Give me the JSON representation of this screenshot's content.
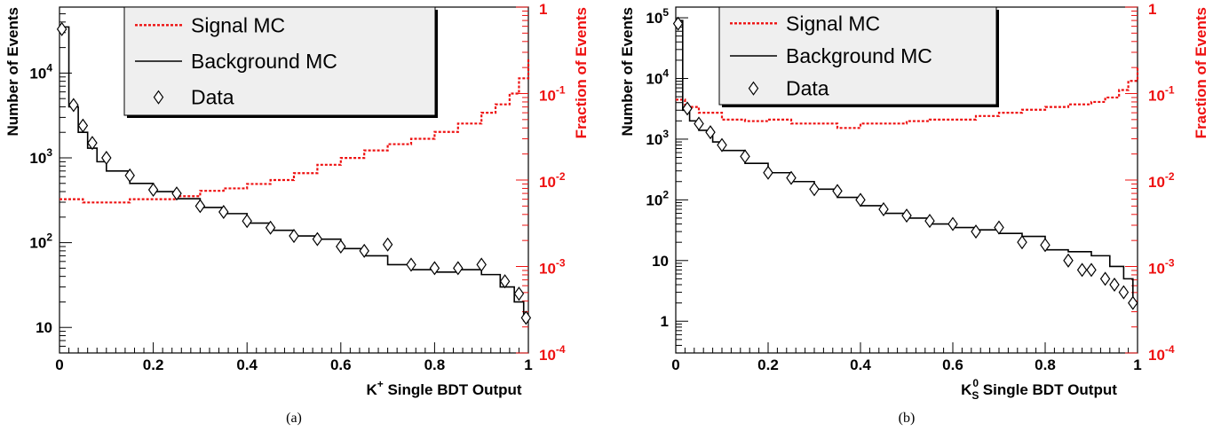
{
  "colors": {
    "signal": "#ee1111",
    "background": "#000000",
    "legend_fill": "#efefef"
  },
  "chart_data": [
    {
      "type": "line",
      "panel_caption": "(a)",
      "xlabel_main": "K",
      "xlabel_sup": "+",
      "xlabel_rest": " Single BDT Output",
      "ylabel_left": "Number of Events",
      "ylabel_right": "Fraction of Events",
      "xlim": [
        0,
        1
      ],
      "ylim_left": [
        5,
        60000
      ],
      "ylim_right": [
        0.0001,
        1
      ],
      "yscale": "log",
      "x_ticks": [
        "0",
        "0.2",
        "0.4",
        "0.6",
        "0.8",
        "1"
      ],
      "y_left_ticks": [
        {
          "value": 10,
          "base": "10",
          "exp": ""
        },
        {
          "value": 100,
          "base": "10",
          "exp": "2"
        },
        {
          "value": 1000,
          "base": "10",
          "exp": "3"
        },
        {
          "value": 10000,
          "base": "10",
          "exp": "4"
        }
      ],
      "y_right_ticks": [
        {
          "value": 0.0001,
          "base": "10",
          "exp": "-4"
        },
        {
          "value": 0.001,
          "base": "10",
          "exp": "-3"
        },
        {
          "value": 0.01,
          "base": "10",
          "exp": "-2"
        },
        {
          "value": 0.1,
          "base": "10",
          "exp": "-1"
        },
        {
          "value": 1,
          "base": "1",
          "exp": ""
        }
      ],
      "legend": {
        "placement": "top-center",
        "entries": [
          "Signal MC",
          "Background MC",
          "Data"
        ]
      },
      "series": [
        {
          "name": "Signal MC",
          "axis": "right",
          "style": "dotted-step",
          "x": [
            0,
            0.05,
            0.1,
            0.15,
            0.2,
            0.25,
            0.3,
            0.35,
            0.4,
            0.45,
            0.5,
            0.55,
            0.6,
            0.65,
            0.7,
            0.75,
            0.8,
            0.85,
            0.9,
            0.93,
            0.96,
            0.98,
            1.0
          ],
          "values": [
            0.006,
            0.0055,
            0.0055,
            0.006,
            0.006,
            0.0065,
            0.0075,
            0.008,
            0.009,
            0.01,
            0.012,
            0.015,
            0.018,
            0.022,
            0.026,
            0.03,
            0.036,
            0.045,
            0.06,
            0.075,
            0.1,
            0.15,
            0.25
          ]
        },
        {
          "name": "Background MC",
          "axis": "left",
          "style": "step",
          "x": [
            0,
            0.02,
            0.04,
            0.06,
            0.08,
            0.1,
            0.15,
            0.2,
            0.25,
            0.3,
            0.35,
            0.4,
            0.45,
            0.5,
            0.55,
            0.6,
            0.65,
            0.7,
            0.75,
            0.8,
            0.85,
            0.9,
            0.94,
            0.97,
            0.99
          ],
          "values": [
            35000,
            4000,
            2000,
            1300,
            900,
            700,
            500,
            400,
            330,
            260,
            220,
            170,
            140,
            120,
            110,
            85,
            70,
            55,
            48,
            45,
            48,
            42,
            30,
            20,
            12
          ]
        },
        {
          "name": "Data",
          "axis": "left",
          "style": "markers",
          "x": [
            0.005,
            0.03,
            0.05,
            0.07,
            0.1,
            0.15,
            0.2,
            0.25,
            0.3,
            0.35,
            0.4,
            0.45,
            0.5,
            0.55,
            0.6,
            0.65,
            0.7,
            0.75,
            0.8,
            0.85,
            0.9,
            0.95,
            0.98,
            0.995
          ],
          "values": [
            33000,
            4200,
            2400,
            1500,
            1000,
            620,
            420,
            380,
            270,
            230,
            180,
            150,
            120,
            110,
            90,
            80,
            95,
            55,
            50,
            50,
            55,
            35,
            25,
            13
          ]
        }
      ]
    },
    {
      "type": "line",
      "panel_caption": "(b)",
      "xlabel_main": "K",
      "xlabel_sup": "0",
      "xlabel_sub": "S",
      "xlabel_rest": " Single BDT Output",
      "ylabel_left": "Number of Events",
      "ylabel_right": "Fraction of Events",
      "xlim": [
        0,
        1
      ],
      "ylim_left": [
        0.3,
        150000
      ],
      "ylim_right": [
        0.0001,
        1
      ],
      "yscale": "log",
      "x_ticks": [
        "0",
        "0.2",
        "0.4",
        "0.6",
        "0.8",
        "1"
      ],
      "y_left_ticks": [
        {
          "value": 1,
          "base": "1",
          "exp": ""
        },
        {
          "value": 10,
          "base": "10",
          "exp": ""
        },
        {
          "value": 100,
          "base": "10",
          "exp": "2"
        },
        {
          "value": 1000,
          "base": "10",
          "exp": "3"
        },
        {
          "value": 10000,
          "base": "10",
          "exp": "4"
        },
        {
          "value": 100000,
          "base": "10",
          "exp": "5"
        }
      ],
      "y_right_ticks": [
        {
          "value": 0.0001,
          "base": "10",
          "exp": "-4"
        },
        {
          "value": 0.001,
          "base": "10",
          "exp": "-3"
        },
        {
          "value": 0.01,
          "base": "10",
          "exp": "-2"
        },
        {
          "value": 0.1,
          "base": "10",
          "exp": "-1"
        },
        {
          "value": 1,
          "base": "1",
          "exp": ""
        }
      ],
      "legend": {
        "placement": "top-center",
        "entries": [
          "Signal MC",
          "Background MC",
          "Data"
        ]
      },
      "series": [
        {
          "name": "Signal MC",
          "axis": "right",
          "style": "dotted-step",
          "x": [
            0,
            0.02,
            0.05,
            0.1,
            0.15,
            0.2,
            0.25,
            0.3,
            0.35,
            0.4,
            0.45,
            0.5,
            0.55,
            0.6,
            0.65,
            0.7,
            0.75,
            0.8,
            0.85,
            0.9,
            0.93,
            0.96,
            0.98,
            1.0
          ],
          "values": [
            0.085,
            0.07,
            0.06,
            0.05,
            0.048,
            0.05,
            0.045,
            0.045,
            0.04,
            0.045,
            0.045,
            0.048,
            0.05,
            0.05,
            0.055,
            0.06,
            0.065,
            0.07,
            0.075,
            0.08,
            0.09,
            0.11,
            0.14,
            0.2
          ]
        },
        {
          "name": "Background MC",
          "axis": "left",
          "style": "step",
          "x": [
            0,
            0.015,
            0.03,
            0.05,
            0.08,
            0.1,
            0.15,
            0.2,
            0.25,
            0.3,
            0.35,
            0.4,
            0.45,
            0.5,
            0.55,
            0.6,
            0.65,
            0.7,
            0.75,
            0.8,
            0.85,
            0.9,
            0.94,
            0.97,
            0.99
          ],
          "values": [
            90000,
            3000,
            2000,
            1400,
            900,
            650,
            400,
            280,
            200,
            150,
            110,
            80,
            60,
            50,
            40,
            35,
            32,
            28,
            25,
            15,
            14,
            12,
            8,
            5,
            2
          ]
        },
        {
          "name": "Data",
          "axis": "left",
          "style": "markers",
          "x": [
            0.005,
            0.025,
            0.05,
            0.075,
            0.1,
            0.15,
            0.2,
            0.25,
            0.3,
            0.35,
            0.4,
            0.45,
            0.5,
            0.55,
            0.6,
            0.65,
            0.7,
            0.75,
            0.8,
            0.85,
            0.88,
            0.9,
            0.93,
            0.95,
            0.97,
            0.99
          ],
          "values": [
            80000,
            3200,
            1800,
            1300,
            800,
            520,
            280,
            230,
            150,
            140,
            100,
            70,
            55,
            45,
            40,
            30,
            35,
            20,
            18,
            10,
            7,
            7,
            5,
            4,
            3,
            2
          ]
        }
      ]
    }
  ]
}
